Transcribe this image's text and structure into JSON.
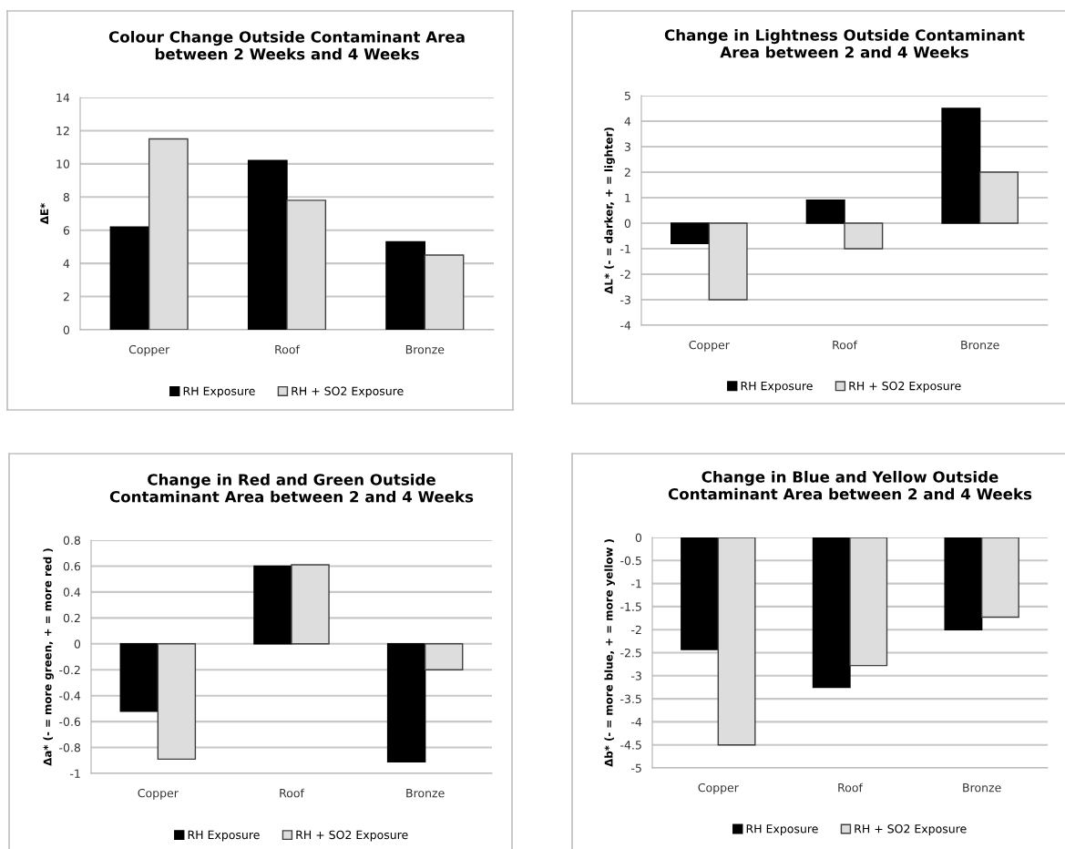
{
  "chart_data": [
    {
      "type": "bar",
      "title": "Colour Change Outside Contaminant Area\nbetween 2 Weeks and 4 Weeks",
      "ylabel": "ΔE*",
      "categories": [
        "Copper",
        "Roof",
        "Bronze"
      ],
      "series": [
        {
          "name": "RH Exposure",
          "color": "#000000",
          "values": [
            6.2,
            10.2,
            5.3
          ]
        },
        {
          "name": "RH + SO2 Exposure",
          "color": "#dddddd",
          "values": [
            11.5,
            7.8,
            4.5
          ]
        }
      ],
      "ylim": [
        0,
        14
      ],
      "yticks": [
        0,
        2,
        4,
        6,
        8,
        10,
        12,
        14
      ],
      "grid": "y",
      "legend": "bottom"
    },
    {
      "type": "bar",
      "title": "Change in Lightness Outside Contaminant\nArea between 2 and 4 Weeks",
      "ylabel": "ΔL* (- = darker, + = lighter)",
      "categories": [
        "Copper",
        "Roof",
        "Bronze"
      ],
      "series": [
        {
          "name": "RH Exposure",
          "color": "#000000",
          "values": [
            -0.8,
            0.9,
            4.5
          ]
        },
        {
          "name": "RH + SO2 Exposure",
          "color": "#dddddd",
          "values": [
            -3.0,
            -1.0,
            2.0
          ]
        }
      ],
      "ylim": [
        -4,
        5
      ],
      "yticks": [
        -4,
        -3,
        -2,
        -1,
        0,
        1,
        2,
        3,
        4,
        5
      ],
      "grid": "y",
      "legend": "bottom"
    },
    {
      "type": "bar",
      "title": "Change in Red and Green Outside\nContaminant Area between 2 and 4 Weeks",
      "ylabel": "Δa* (- = more green, + = more red )",
      "categories": [
        "Copper",
        "Roof",
        "Bronze"
      ],
      "series": [
        {
          "name": "RH Exposure",
          "color": "#000000",
          "values": [
            -0.52,
            0.6,
            -0.91
          ]
        },
        {
          "name": "RH + SO2 Exposure",
          "color": "#dddddd",
          "values": [
            -0.89,
            0.61,
            -0.2
          ]
        }
      ],
      "ylim": [
        -1,
        0.8
      ],
      "yticks": [
        -1,
        -0.8,
        -0.6,
        -0.4,
        -0.2,
        0,
        0.2,
        0.4,
        0.6,
        0.8
      ],
      "grid": "y",
      "legend": "bottom"
    },
    {
      "type": "bar",
      "title": "Change in Blue and Yellow Outside\nContaminant Area between 2 and 4 Weeks",
      "ylabel": "Δb* (- = more blue, + = more yellow )",
      "categories": [
        "Copper",
        "Roof",
        "Bronze"
      ],
      "series": [
        {
          "name": "RH Exposure",
          "color": "#000000",
          "values": [
            -2.43,
            -3.25,
            -2.0
          ]
        },
        {
          "name": "RH + SO2 Exposure",
          "color": "#dddddd",
          "values": [
            -4.5,
            -2.78,
            -1.73
          ]
        }
      ],
      "ylim": [
        -5,
        0
      ],
      "yticks": [
        -5,
        -4.5,
        -4,
        -3.5,
        -3,
        -2.5,
        -2,
        -1.5,
        -1,
        -0.5,
        0
      ],
      "grid": "y",
      "legend": "bottom"
    }
  ]
}
